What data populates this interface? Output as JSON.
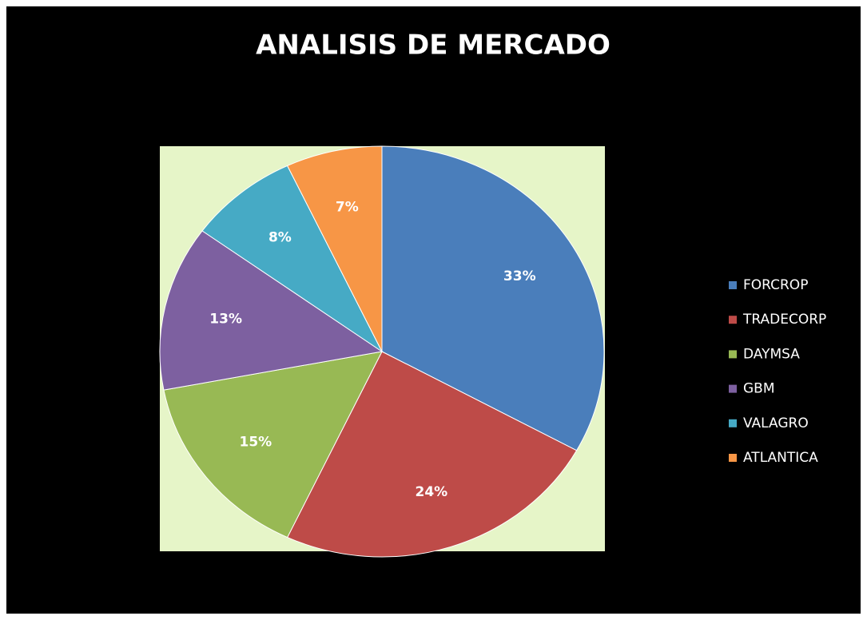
{
  "chart_data": {
    "type": "pie",
    "title": "ANALISIS DE MERCADO",
    "categories": [
      "FORCROP",
      "TRADECORP",
      "DAYMSA",
      "GBM",
      "VALAGRO",
      "ATLANTICA"
    ],
    "values": [
      33,
      24,
      15,
      13,
      8,
      7
    ],
    "value_labels": [
      "33%",
      "24%",
      "15%",
      "13%",
      "8%",
      "7%"
    ],
    "colors": [
      "#4a7ebb",
      "#be4b48",
      "#98b954",
      "#7d60a0",
      "#46aac5",
      "#f79646"
    ],
    "legend": "right"
  }
}
